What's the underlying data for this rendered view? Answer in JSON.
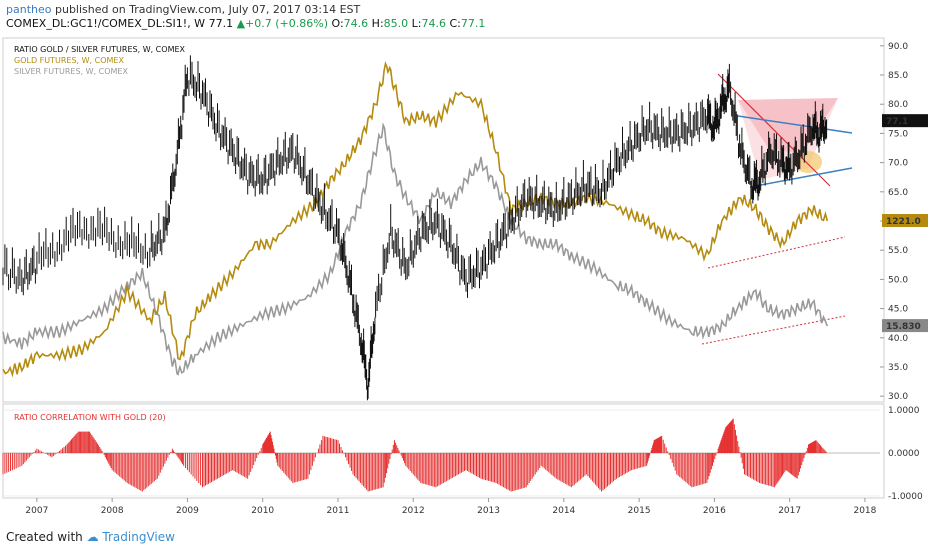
{
  "header": {
    "author": "pantheo",
    "published": "published on TradingView.com, July 07, 2017 03:14 EST",
    "symbol": "COMEX_DL:GC1!/COMEX_DL:SI1!, W",
    "last": "77.1",
    "change": "+0.7 (+0.86%)",
    "o_label": "O:",
    "o": "74.6",
    "h_label": "H:",
    "h": "85.0",
    "l_label": "L:",
    "l": "74.6",
    "c_label": "C:",
    "c": "77.1"
  },
  "footer": {
    "created_with": "Created with",
    "brand": "TradingView"
  },
  "colors": {
    "ratio": "#111111",
    "gold": "#b58b0f",
    "silver": "#999999",
    "corr": "#e53030",
    "trendline": "#3b7fc4",
    "pattern": "#f4a9b0"
  },
  "chart_data": [
    {
      "type": "line",
      "title": "RATIO GOLD / SILVER FUTURES, W, COMEX",
      "y_scale_labels": [
        "90.0",
        "85.0",
        "80.0",
        "75.0",
        "70.0",
        "65.0",
        "60.0",
        "55.0",
        "50.0",
        "45.0",
        "40.0",
        "35.0",
        "30.0"
      ],
      "ylim": [
        29,
        91
      ],
      "x_tick_labels": [
        "2007",
        "2008",
        "2009",
        "2010",
        "2011",
        "2012",
        "2013",
        "2014",
        "2015",
        "2016",
        "2017",
        "2018"
      ],
      "xlim": [
        2006.55,
        2018.2
      ],
      "series": [
        {
          "name": "RATIO GOLD / SILVER FUTURES, W, COMEX",
          "last_label": "77.1",
          "x": [
            2006.55,
            2006.8,
            2007.0,
            2007.3,
            2007.6,
            2007.9,
            2008.2,
            2008.5,
            2008.7,
            2008.85,
            2009.0,
            2009.2,
            2009.4,
            2009.6,
            2009.8,
            2010.0,
            2010.2,
            2010.4,
            2010.6,
            2010.8,
            2011.0,
            2011.15,
            2011.3,
            2011.4,
            2011.5,
            2011.7,
            2011.9,
            2012.1,
            2012.3,
            2012.5,
            2012.7,
            2012.9,
            2013.1,
            2013.3,
            2013.5,
            2013.7,
            2013.9,
            2014.1,
            2014.3,
            2014.5,
            2014.7,
            2014.9,
            2015.1,
            2015.3,
            2015.5,
            2015.7,
            2015.9,
            2016.0,
            2016.1,
            2016.2,
            2016.35,
            2016.5,
            2016.6,
            2016.75,
            2016.9,
            2017.0,
            2017.15,
            2017.3,
            2017.4,
            2017.5
          ],
          "y": [
            52,
            50,
            53,
            56,
            59,
            58,
            56,
            55,
            58,
            70,
            85,
            82,
            76,
            72,
            68,
            67,
            70,
            72,
            67,
            62,
            58,
            50,
            40,
            32,
            45,
            58,
            52,
            58,
            60,
            56,
            50,
            52,
            56,
            60,
            64,
            63,
            62,
            64,
            66,
            65,
            70,
            73,
            76,
            75,
            75,
            76,
            78,
            76,
            80,
            83,
            72,
            66,
            67,
            72,
            70,
            69,
            72,
            76,
            75,
            77.1
          ]
        },
        {
          "name": "GOLD FUTURES, W, COMEX",
          "last_label": "1221.0",
          "x": [
            2006.55,
            2006.8,
            2007.0,
            2007.3,
            2007.6,
            2007.9,
            2008.2,
            2008.5,
            2008.7,
            2008.9,
            2009.1,
            2009.3,
            2009.6,
            2009.9,
            2010.1,
            2010.4,
            2010.7,
            2010.9,
            2011.1,
            2011.3,
            2011.5,
            2011.65,
            2011.75,
            2011.9,
            2012.1,
            2012.3,
            2012.6,
            2012.9,
            2013.1,
            2013.3,
            2013.5,
            2013.7,
            2013.9,
            2014.1,
            2014.3,
            2014.6,
            2014.9,
            2015.1,
            2015.3,
            2015.6,
            2015.9,
            2016.1,
            2016.35,
            2016.55,
            2016.7,
            2016.9,
            2017.1,
            2017.3,
            2017.5
          ],
          "y": [
            34,
            35,
            37,
            37,
            38,
            41,
            48,
            43,
            47,
            36,
            44,
            47,
            51,
            56,
            56,
            60,
            63,
            67,
            70,
            74,
            80,
            87,
            83,
            77,
            78,
            77,
            82,
            80,
            72,
            62,
            63,
            64,
            63,
            63,
            64,
            63,
            61,
            60,
            58,
            57,
            54,
            60,
            64,
            62,
            59,
            56,
            60,
            62,
            60
          ]
        },
        {
          "name": "SILVER FUTURES, W, COMEX",
          "last_label": "15.830",
          "x": [
            2006.55,
            2006.8,
            2007.0,
            2007.3,
            2007.6,
            2007.9,
            2008.2,
            2008.4,
            2008.6,
            2008.8,
            2008.9,
            2009.1,
            2009.4,
            2009.7,
            2010.0,
            2010.3,
            2010.6,
            2010.9,
            2011.1,
            2011.3,
            2011.45,
            2011.6,
            2011.75,
            2011.9,
            2012.1,
            2012.3,
            2012.5,
            2012.7,
            2012.9,
            2013.1,
            2013.3,
            2013.5,
            2013.7,
            2013.9,
            2014.1,
            2014.4,
            2014.7,
            2014.9,
            2015.1,
            2015.4,
            2015.7,
            2015.9,
            2016.1,
            2016.3,
            2016.55,
            2016.7,
            2016.9,
            2017.1,
            2017.3,
            2017.5
          ],
          "y": [
            40,
            39,
            41,
            41,
            43,
            45,
            49,
            51,
            44,
            36,
            34,
            37,
            40,
            42,
            44,
            45,
            47,
            51,
            58,
            63,
            70,
            76,
            68,
            64,
            60,
            65,
            63,
            67,
            70,
            66,
            60,
            57,
            56,
            56,
            54,
            52,
            49,
            48,
            46,
            43,
            41,
            41,
            42,
            45,
            48,
            45,
            44,
            45,
            46,
            42
          ]
        }
      ]
    },
    {
      "type": "bar",
      "title": "RATIO CORRELATION WITH GOLD (20)",
      "y_scale_labels": [
        "1.0000",
        "0.0000",
        "-1.0000"
      ],
      "ylim": [
        -1.05,
        1.05
      ],
      "series": [
        {
          "name": "RATIO CORRELATION WITH GOLD (20)",
          "x": [
            2006.55,
            2006.8,
            2007.0,
            2007.2,
            2007.4,
            2007.55,
            2007.7,
            2007.85,
            2008.0,
            2008.2,
            2008.4,
            2008.6,
            2008.8,
            2008.95,
            2009.2,
            2009.4,
            2009.6,
            2009.8,
            2010.0,
            2010.1,
            2010.2,
            2010.4,
            2010.6,
            2010.8,
            2011.0,
            2011.2,
            2011.4,
            2011.6,
            2011.75,
            2011.9,
            2012.1,
            2012.3,
            2012.5,
            2012.7,
            2012.9,
            2013.1,
            2013.3,
            2013.5,
            2013.7,
            2013.9,
            2014.1,
            2014.3,
            2014.5,
            2014.7,
            2014.9,
            2015.1,
            2015.2,
            2015.3,
            2015.5,
            2015.7,
            2015.9,
            2016.05,
            2016.15,
            2016.25,
            2016.4,
            2016.6,
            2016.8,
            2016.95,
            2017.1,
            2017.25,
            2017.35,
            2017.5
          ],
          "y": [
            -0.5,
            -0.3,
            0.1,
            -0.1,
            0.2,
            0.5,
            0.5,
            0.1,
            -0.4,
            -0.7,
            -0.9,
            -0.6,
            0.1,
            -0.3,
            -0.8,
            -0.6,
            -0.4,
            -0.6,
            0.2,
            0.5,
            -0.3,
            -0.7,
            -0.6,
            0.4,
            0.3,
            -0.5,
            -0.9,
            -0.8,
            0.3,
            -0.3,
            -0.7,
            -0.8,
            -0.6,
            -0.4,
            -0.6,
            -0.7,
            -0.9,
            -0.8,
            -0.3,
            -0.6,
            -0.8,
            -0.5,
            -0.9,
            -0.6,
            -0.4,
            -0.3,
            0.3,
            0.4,
            -0.5,
            -0.8,
            -0.7,
            0.1,
            0.6,
            0.8,
            -0.5,
            -0.7,
            -0.8,
            -0.4,
            -0.6,
            0.2,
            0.3,
            0.0
          ]
        }
      ]
    }
  ]
}
